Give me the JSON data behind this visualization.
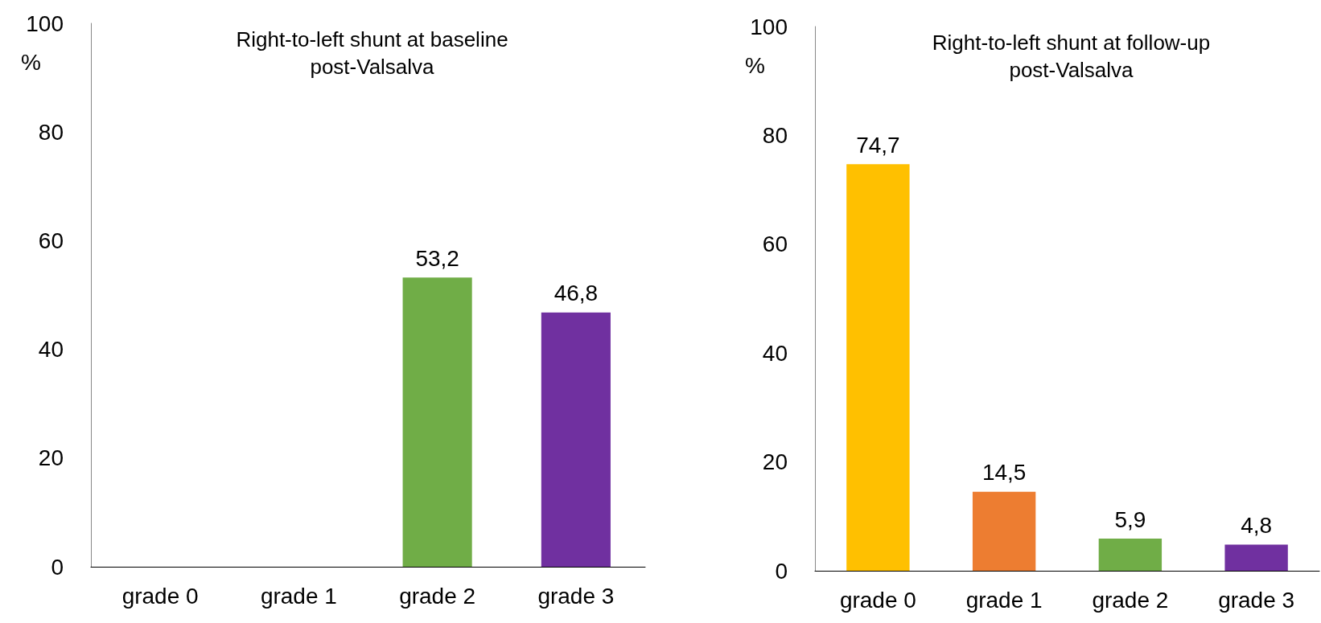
{
  "chart_data": [
    {
      "type": "bar",
      "title": "Right-to-left shunt at baseline\npost-Valsalva",
      "ylabel": "%",
      "categories": [
        "grade 0",
        "grade 1",
        "grade 2",
        "grade 3"
      ],
      "values": [
        0,
        0,
        53.2,
        46.8
      ],
      "colors": [
        "#ffc000",
        "#ed7d31",
        "#70ad47",
        "#7030a0"
      ],
      "value_labels": [
        null,
        null,
        "53,2",
        "46,8"
      ],
      "ylim": [
        0,
        100
      ],
      "yticks": [
        0,
        20,
        40,
        60,
        80,
        100
      ]
    },
    {
      "type": "bar",
      "title": "Right-to-left shunt at follow-up\npost-Valsalva",
      "ylabel": "%",
      "categories": [
        "grade 0",
        "grade 1",
        "grade 2",
        "grade 3"
      ],
      "values": [
        74.7,
        14.5,
        5.9,
        4.8
      ],
      "colors": [
        "#ffc000",
        "#ed7d31",
        "#70ad47",
        "#7030a0"
      ],
      "value_labels": [
        "74,7",
        "14,5",
        "5,9",
        "4,8"
      ],
      "ylim": [
        0,
        100
      ],
      "yticks": [
        0,
        20,
        40,
        60,
        80,
        100
      ]
    }
  ]
}
